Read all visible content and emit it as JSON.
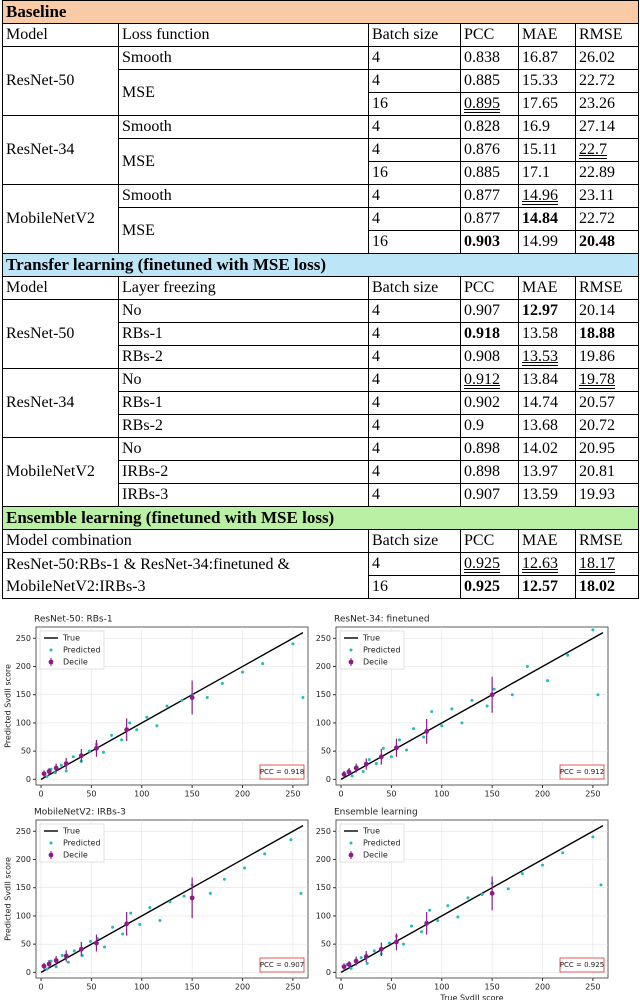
{
  "table": {
    "sections": [
      {
        "title": "Baseline",
        "color": "#f8cba6",
        "header": [
          "Model",
          "Loss function",
          "Batch size",
          "PCC",
          "MAE",
          "RMSE"
        ],
        "groups": [
          {
            "model": "ResNet-50",
            "subgroups": [
              {
                "label": "Smooth",
                "rows": [
                  [
                    "4",
                    "0.838",
                    "16.87",
                    "26.02"
                  ]
                ]
              },
              {
                "label": "MSE",
                "rows": [
                  [
                    "4",
                    "0.885",
                    "15.33",
                    "22.72"
                  ],
                  [
                    "16",
                    {
                      "text": "0.895",
                      "format": "underline"
                    },
                    "17.65",
                    "23.26"
                  ]
                ]
              }
            ]
          },
          {
            "model": "ResNet-34",
            "subgroups": [
              {
                "label": "Smooth",
                "rows": [
                  [
                    "4",
                    "0.828",
                    "16.9",
                    "27.14"
                  ]
                ]
              },
              {
                "label": "MSE",
                "rows": [
                  [
                    "4",
                    "0.876",
                    "15.11",
                    {
                      "text": "22.7",
                      "format": "underline"
                    }
                  ],
                  [
                    "16",
                    "0.885",
                    "17.1",
                    "22.89"
                  ]
                ]
              }
            ]
          },
          {
            "model": "MobileNetV2",
            "subgroups": [
              {
                "label": "Smooth",
                "rows": [
                  [
                    "4",
                    "0.877",
                    {
                      "text": "14.96",
                      "format": "underline"
                    },
                    "23.11"
                  ]
                ]
              },
              {
                "label": "MSE",
                "rows": [
                  [
                    "4",
                    "0.877",
                    {
                      "text": "14.84",
                      "format": "bold"
                    },
                    "22.72"
                  ],
                  [
                    "16",
                    {
                      "text": "0.903",
                      "format": "bold"
                    },
                    "14.99",
                    {
                      "text": "20.48",
                      "format": "bold"
                    }
                  ]
                ]
              }
            ]
          }
        ]
      },
      {
        "title": "Transfer learning (finetuned with MSE loss)",
        "color": "#bde5f8",
        "header": [
          "Model",
          "Layer freezing",
          "Batch size",
          "PCC",
          "MAE",
          "RMSE"
        ],
        "groups": [
          {
            "model": "ResNet-50",
            "subgroups": [
              {
                "label": "No",
                "rows": [
                  [
                    "4",
                    "0.907",
                    {
                      "text": "12.97",
                      "format": "bold"
                    },
                    "20.14"
                  ]
                ]
              },
              {
                "label": "RBs-1",
                "rows": [
                  [
                    "4",
                    {
                      "text": "0.918",
                      "format": "bold"
                    },
                    "13.58",
                    {
                      "text": "18.88",
                      "format": "bold"
                    }
                  ]
                ]
              },
              {
                "label": "RBs-2",
                "rows": [
                  [
                    "4",
                    "0.908",
                    {
                      "text": "13.53",
                      "format": "underline"
                    },
                    "19.86"
                  ]
                ]
              }
            ]
          },
          {
            "model": "ResNet-34",
            "subgroups": [
              {
                "label": "No",
                "rows": [
                  [
                    "4",
                    {
                      "text": "0.912",
                      "format": "underline"
                    },
                    "13.84",
                    {
                      "text": "19.78",
                      "format": "underline"
                    }
                  ]
                ]
              },
              {
                "label": "RBs-1",
                "rows": [
                  [
                    "4",
                    "0.902",
                    "14.74",
                    "20.57"
                  ]
                ]
              },
              {
                "label": "RBs-2",
                "rows": [
                  [
                    "4",
                    "0.9",
                    "13.68",
                    "20.72"
                  ]
                ]
              }
            ]
          },
          {
            "model": "MobileNetV2",
            "subgroups": [
              {
                "label": "No",
                "rows": [
                  [
                    "4",
                    "0.898",
                    "14.02",
                    "20.95"
                  ]
                ]
              },
              {
                "label": "IRBs-2",
                "rows": [
                  [
                    "4",
                    "0.898",
                    "13.97",
                    "20.81"
                  ]
                ]
              },
              {
                "label": "IRBs-3",
                "rows": [
                  [
                    "4",
                    "0.907",
                    "13.59",
                    "19.93"
                  ]
                ]
              }
            ]
          }
        ]
      },
      {
        "title": "Ensemble learning (finetuned with MSE loss)",
        "color": "#b9f0a4",
        "header": [
          "Model combination",
          "Batch size",
          "PCC",
          "MAE",
          "RMSE"
        ],
        "groups": [
          {
            "model": "ResNet-50:RBs-1 & ResNet-34:finetuned & MobileNetV2:IRBs-3",
            "rows": [
              [
                "4",
                {
                  "text": "0.925",
                  "format": "underline"
                },
                {
                  "text": "12.63",
                  "format": "underline"
                },
                {
                  "text": "18.17",
                  "format": "underline"
                }
              ],
              [
                "16",
                {
                  "text": "0.925",
                  "format": "bold"
                },
                {
                  "text": "12.57",
                  "format": "bold"
                },
                {
                  "text": "18.02",
                  "format": "bold"
                }
              ]
            ]
          }
        ]
      }
    ]
  },
  "chart_data": [
    {
      "type": "scatter",
      "title": "ResNet-50: RBs-1",
      "y_label": "Predicted SvdII score",
      "xlim": [
        -5,
        265
      ],
      "ylim": [
        -10,
        270
      ],
      "xticks": [
        0,
        50,
        100,
        150,
        200,
        250
      ],
      "yticks": [
        0,
        50,
        100,
        150,
        200,
        250
      ],
      "grid": true,
      "legend": "upper left",
      "annotation": "PCC = 0.918",
      "series": [
        {
          "name": "True",
          "color": "#000000",
          "x": [
            0,
            260
          ],
          "y": [
            0,
            260
          ]
        },
        {
          "name": "Predicted",
          "color": "#1fbcbc",
          "x": [
            3,
            6,
            10,
            14,
            20,
            25,
            32,
            40,
            48,
            55,
            62,
            70,
            80,
            88,
            95,
            105,
            115,
            125,
            140,
            150,
            165,
            180,
            200,
            220,
            250,
            260
          ],
          "y": [
            10,
            5,
            18,
            12,
            25,
            15,
            40,
            32,
            50,
            62,
            48,
            78,
            70,
            100,
            88,
            110,
            95,
            130,
            140,
            150,
            145,
            170,
            190,
            205,
            240,
            145
          ]
        },
        {
          "name": "Decile",
          "color": "#8b1a8b",
          "x": [
            3,
            8,
            15,
            25,
            40,
            55,
            85,
            150
          ],
          "y": [
            10,
            14,
            20,
            28,
            42,
            55,
            88,
            145
          ],
          "errors": [
            6,
            6,
            8,
            10,
            12,
            15,
            20,
            30
          ]
        }
      ]
    },
    {
      "type": "scatter",
      "title": "ResNet-34: finetuned",
      "xlim": [
        -5,
        265
      ],
      "ylim": [
        -10,
        270
      ],
      "xticks": [
        0,
        50,
        100,
        150,
        200,
        250
      ],
      "yticks": [
        0,
        50,
        100,
        150,
        200,
        250
      ],
      "grid": true,
      "legend": "upper left",
      "annotation": "PCC = 0.912",
      "series": [
        {
          "name": "True",
          "color": "#000000",
          "x": [
            0,
            260
          ],
          "y": [
            0,
            260
          ]
        },
        {
          "name": "Predicted",
          "color": "#1fbcbc",
          "x": [
            3,
            7,
            11,
            16,
            22,
            28,
            35,
            42,
            50,
            58,
            65,
            72,
            82,
            90,
            100,
            110,
            120,
            130,
            145,
            152,
            170,
            185,
            205,
            225,
            250,
            255
          ],
          "y": [
            8,
            15,
            6,
            22,
            14,
            35,
            28,
            55,
            40,
            70,
            52,
            90,
            75,
            120,
            95,
            125,
            100,
            140,
            130,
            160,
            150,
            200,
            175,
            220,
            265,
            150
          ]
        },
        {
          "name": "Decile",
          "color": "#8b1a8b",
          "x": [
            3,
            8,
            15,
            25,
            40,
            55,
            85,
            150
          ],
          "y": [
            9,
            13,
            20,
            27,
            40,
            56,
            85,
            150
          ],
          "errors": [
            6,
            7,
            8,
            10,
            14,
            16,
            22,
            32
          ]
        }
      ]
    },
    {
      "type": "scatter",
      "title": "MobileNetV2: IRBs-3",
      "y_label": "Predicted SvdII score",
      "xlim": [
        -5,
        265
      ],
      "ylim": [
        -10,
        270
      ],
      "xticks": [
        0,
        50,
        100,
        150,
        200,
        250
      ],
      "yticks": [
        0,
        50,
        100,
        150,
        200,
        250
      ],
      "grid": true,
      "legend": "upper left",
      "annotation": "PCC = 0.907",
      "series": [
        {
          "name": "True",
          "color": "#000000",
          "x": [
            0,
            260
          ],
          "y": [
            0,
            260
          ]
        },
        {
          "name": "Predicted",
          "color": "#1fbcbc",
          "x": [
            2,
            6,
            10,
            15,
            21,
            27,
            33,
            41,
            49,
            56,
            63,
            71,
            81,
            89,
            98,
            108,
            118,
            128,
            142,
            150,
            168,
            182,
            202,
            222,
            248,
            258
          ],
          "y": [
            12,
            6,
            20,
            10,
            30,
            18,
            38,
            30,
            55,
            60,
            45,
            80,
            68,
            105,
            85,
            115,
            92,
            125,
            135,
            155,
            140,
            165,
            185,
            210,
            235,
            140
          ]
        },
        {
          "name": "Decile",
          "color": "#8b1a8b",
          "x": [
            3,
            8,
            15,
            25,
            40,
            55,
            85,
            150
          ],
          "y": [
            11,
            15,
            21,
            29,
            41,
            52,
            86,
            132
          ],
          "errors": [
            6,
            7,
            8,
            10,
            13,
            15,
            21,
            36
          ]
        }
      ]
    },
    {
      "type": "scatter",
      "title": "Ensemble learning",
      "x_label": "True SvdII score",
      "xlim": [
        -5,
        265
      ],
      "ylim": [
        -10,
        270
      ],
      "xticks": [
        0,
        50,
        100,
        150,
        200,
        250
      ],
      "yticks": [
        0,
        50,
        100,
        150,
        200,
        250
      ],
      "grid": true,
      "legend": "upper left",
      "annotation": "PCC = 0.925",
      "series": [
        {
          "name": "True",
          "color": "#000000",
          "x": [
            0,
            260
          ],
          "y": [
            0,
            260
          ]
        },
        {
          "name": "Predicted",
          "color": "#1fbcbc",
          "x": [
            3,
            6,
            10,
            14,
            20,
            26,
            33,
            40,
            48,
            55,
            62,
            70,
            80,
            88,
            96,
            106,
            116,
            126,
            140,
            150,
            166,
            180,
            200,
            220,
            250,
            258
          ],
          "y": [
            9,
            14,
            7,
            20,
            26,
            16,
            38,
            33,
            52,
            64,
            50,
            82,
            72,
            110,
            92,
            118,
            98,
            132,
            138,
            158,
            148,
            175,
            190,
            212,
            240,
            155
          ]
        },
        {
          "name": "Decile",
          "color": "#8b1a8b",
          "x": [
            3,
            8,
            15,
            25,
            40,
            55,
            85,
            150
          ],
          "y": [
            10,
            14,
            20,
            28,
            41,
            54,
            87,
            140
          ],
          "errors": [
            6,
            6,
            8,
            10,
            12,
            15,
            20,
            30
          ]
        }
      ]
    }
  ]
}
